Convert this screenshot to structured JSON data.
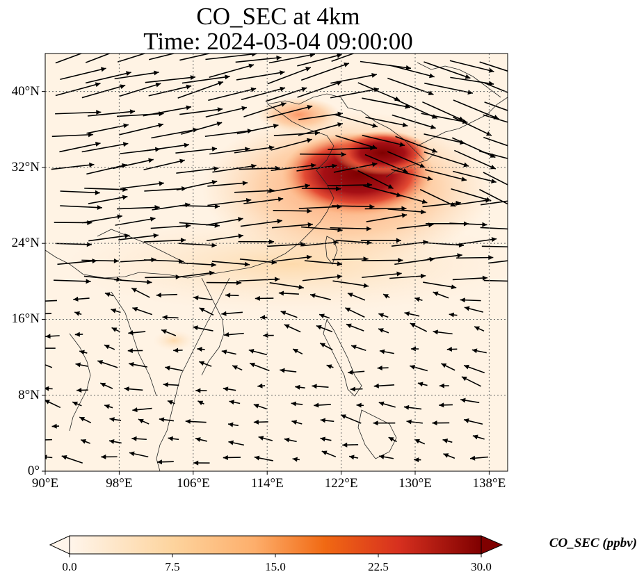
{
  "title": {
    "line1": "CO_SEC at 4km",
    "line2": "Time: 2024-03-04 09:00:00"
  },
  "map": {
    "type": "field+vectors",
    "variable": "CO_SEC",
    "lon_range": [
      90,
      140
    ],
    "lat_range": [
      0,
      44
    ],
    "lon_ticks": [
      "90°E",
      "98°E",
      "106°E",
      "114°E",
      "122°E",
      "130°E",
      "138°E"
    ],
    "lat_ticks": [
      "0°",
      "8°N",
      "16°N",
      "24°N",
      "32°N",
      "40°N"
    ],
    "gridlines": "dotted",
    "plume_core_lon_lat": [
      125,
      34
    ],
    "colors": {
      "low": "#fff5eb",
      "mid": "#fdae6b",
      "high": "#7f0000"
    }
  },
  "colorbar": {
    "label": "CO_SEC (ppbv)",
    "ticks": [
      "0.0",
      "7.5",
      "15.0",
      "22.5",
      "30.0"
    ],
    "range": [
      0,
      30
    ],
    "extend": "both"
  }
}
